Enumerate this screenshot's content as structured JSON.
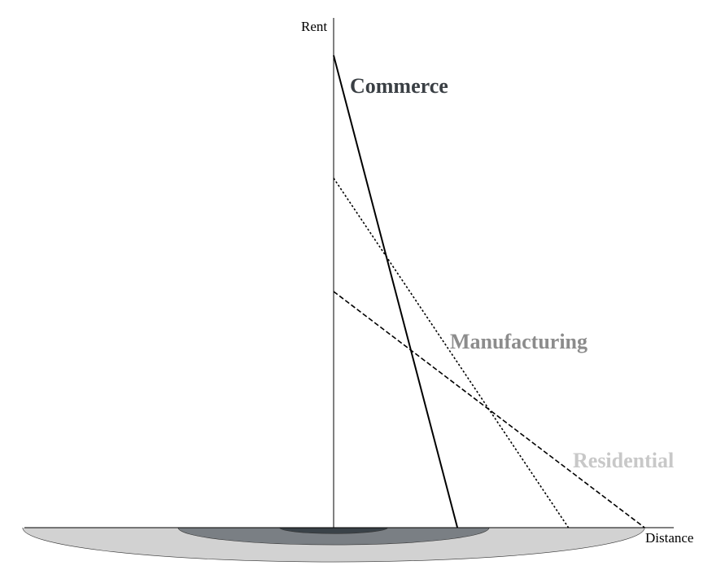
{
  "chart_data": {
    "type": "line",
    "title": "",
    "xlabel": "Distance",
    "ylabel": "Rent",
    "xlim": [
      0,
      100
    ],
    "ylim": [
      0,
      100
    ],
    "grid": false,
    "legend": "none",
    "series": [
      {
        "name": "Commerce",
        "x": [
          0,
          39
        ],
        "y": [
          100,
          0
        ],
        "color": "#000000",
        "label_color": "#3a3f44",
        "dash": "solid"
      },
      {
        "name": "Manufacturing",
        "x": [
          0,
          74
        ],
        "y": [
          74,
          0
        ],
        "color": "#000000",
        "label_color": "#8c8c8c",
        "dash": "dotted"
      },
      {
        "name": "Residential",
        "x": [
          0,
          98
        ],
        "y": [
          50,
          0
        ],
        "color": "#000000",
        "label_color": "#c8c8c8",
        "dash": "dashed"
      }
    ],
    "rings": [
      {
        "zone": "Residential",
        "radius": 98,
        "color": "#d2d2d2"
      },
      {
        "zone": "Manufacturing",
        "radius": 49,
        "color": "#7a7f84"
      },
      {
        "zone": "Commerce",
        "radius": 17,
        "color": "#3a4248"
      }
    ]
  }
}
